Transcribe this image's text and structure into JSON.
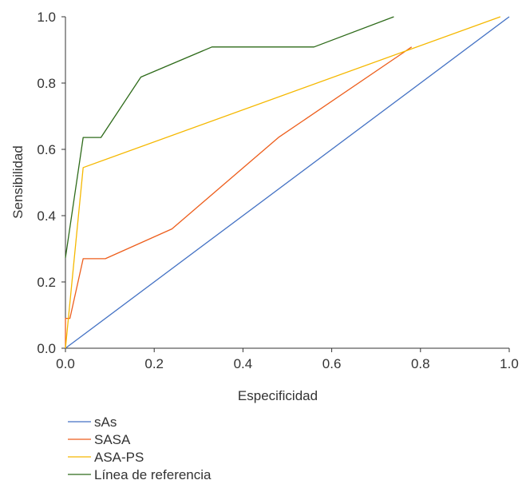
{
  "chart_data": {
    "type": "line",
    "title": "",
    "xlabel": "Especificidad",
    "ylabel": "Sensibilidad",
    "xlim": [
      0,
      1
    ],
    "ylim": [
      0,
      1
    ],
    "xticks": [
      "0.0",
      "0.2",
      "0.4",
      "0.6",
      "0.8",
      "1.0"
    ],
    "yticks": [
      "0.0",
      "0.2",
      "0.4",
      "0.6",
      "0.8",
      "1.0"
    ],
    "grid": false,
    "legend_position": "bottom-left",
    "series": [
      {
        "name": "sAs",
        "color": "#4472c4",
        "points": [
          [
            0,
            0
          ],
          [
            1,
            1
          ]
        ]
      },
      {
        "name": "SASA",
        "color": "#ed5e1c",
        "points": [
          [
            0,
            0
          ],
          [
            0,
            0.09
          ],
          [
            0.01,
            0.09
          ],
          [
            0.04,
            0.27
          ],
          [
            0.09,
            0.27
          ],
          [
            0.24,
            0.36
          ],
          [
            0.48,
            0.636
          ],
          [
            0.78,
            0.909
          ]
        ]
      },
      {
        "name": "ASA-PS",
        "color": "#f5b800",
        "points": [
          [
            0,
            0
          ],
          [
            0.04,
            0.545
          ],
          [
            0.98,
            1.0
          ]
        ]
      },
      {
        "name": "Línea de referencia",
        "color": "#2e6b1a",
        "points": [
          [
            0,
            0.273
          ],
          [
            0.04,
            0.636
          ],
          [
            0.08,
            0.636
          ],
          [
            0.17,
            0.818
          ],
          [
            0.33,
            0.909
          ],
          [
            0.56,
            0.909
          ],
          [
            0.74,
            1.0
          ]
        ]
      }
    ]
  }
}
